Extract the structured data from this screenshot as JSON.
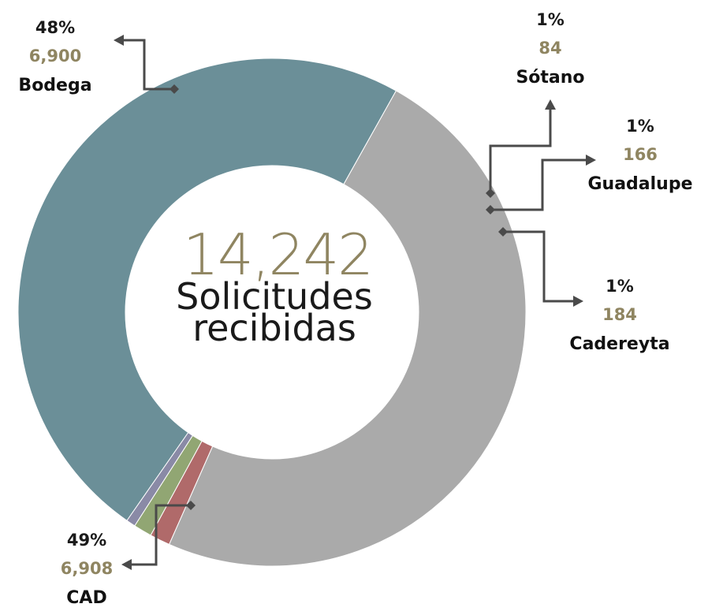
{
  "chart_data": {
    "type": "pie",
    "donut": true,
    "center_total": "14,242",
    "center_label_line1": "Solicitudes",
    "center_label_line2": "recibidas",
    "colors": {
      "value_text": "#8f8561",
      "total_text": "#8f8561",
      "leader_line": "#4a4a4a"
    },
    "slices": [
      {
        "name": "Bodega",
        "value": 6900,
        "value_label": "6,900",
        "percent_label": "48%",
        "color": "#6b8f98"
      },
      {
        "name": "Sótano",
        "value": 84,
        "value_label": "84",
        "percent_label": "1%",
        "color": "#8a8aa6"
      },
      {
        "name": "Guadalupe",
        "value": 166,
        "value_label": "166",
        "percent_label": "1%",
        "color": "#91a673"
      },
      {
        "name": "Cadereyta",
        "value": 184,
        "value_label": "184",
        "percent_label": "1%",
        "color": "#b06a6a"
      },
      {
        "name": "CAD",
        "value": 6908,
        "value_label": "6,908",
        "percent_label": "49%",
        "color": "#aaaaaa"
      }
    ]
  }
}
